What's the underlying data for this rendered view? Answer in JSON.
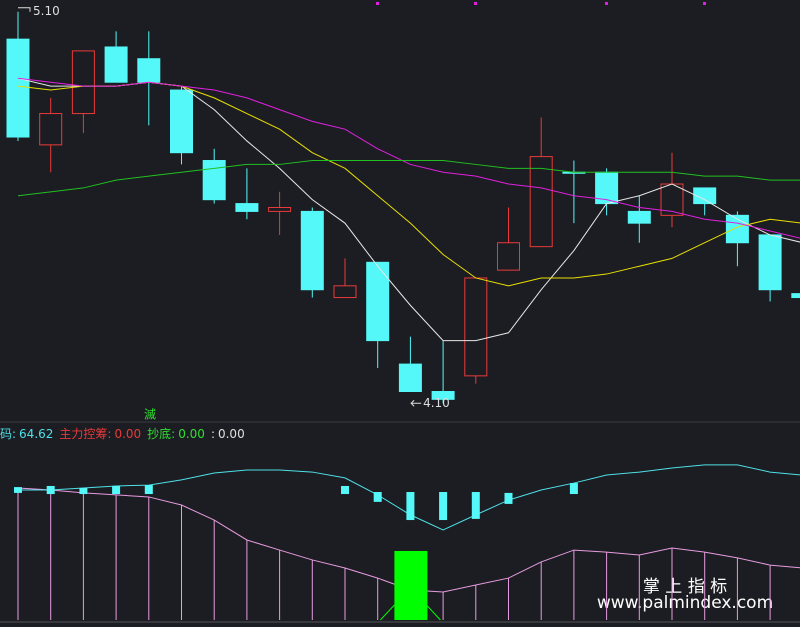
{
  "chart_data": [
    {
      "type": "candlestick",
      "open": [
        5.03,
        4.76,
        4.84,
        5.01,
        4.98,
        4.9,
        4.72,
        4.61,
        4.59,
        4.59,
        4.37,
        4.46,
        4.2,
        4.13,
        4.17,
        4.44,
        4.5,
        4.69,
        4.69,
        4.59,
        4.58,
        4.65,
        4.58,
        4.53,
        4.38
      ],
      "high": [
        5.1,
        4.88,
        5.0,
        5.05,
        5.05,
        4.91,
        4.75,
        4.7,
        4.64,
        4.6,
        4.47,
        4.46,
        4.27,
        4.26,
        4.42,
        4.6,
        4.83,
        4.72,
        4.7,
        4.63,
        4.74,
        4.65,
        4.59,
        4.53,
        4.38
      ],
      "low": [
        4.77,
        4.69,
        4.79,
        4.92,
        4.81,
        4.71,
        4.61,
        4.57,
        4.53,
        4.37,
        4.37,
        4.19,
        4.13,
        4.1,
        4.15,
        4.44,
        4.5,
        4.56,
        4.58,
        4.51,
        4.55,
        4.58,
        4.45,
        4.36,
        4.37
      ],
      "close": [
        4.78,
        4.84,
        5.0,
        4.92,
        4.92,
        4.74,
        4.62,
        4.59,
        4.6,
        4.39,
        4.4,
        4.26,
        4.13,
        4.11,
        4.42,
        4.51,
        4.73,
        4.69,
        4.61,
        4.56,
        4.66,
        4.61,
        4.51,
        4.39,
        4.37
      ],
      "up_color": "#e83a3a",
      "down_color": "#54f8f8",
      "ylim": [
        4.07,
        5.13
      ],
      "max_label": "5.10",
      "min_label": "4.10",
      "lines": [
        {
          "color": "#e8e8e8",
          "values": [
            4.93,
            4.91,
            4.91,
            4.91,
            4.92,
            4.91,
            4.85,
            4.77,
            4.7,
            4.62,
            4.56,
            4.45,
            4.35,
            4.26,
            4.26,
            4.28,
            4.39,
            4.49,
            4.61,
            4.63,
            4.66,
            4.62,
            4.57,
            4.53,
            4.51
          ]
        },
        {
          "color": "#e8e000",
          "values": [
            4.91,
            4.9,
            4.91,
            4.91,
            4.92,
            4.91,
            4.88,
            4.84,
            4.8,
            4.74,
            4.7,
            4.63,
            4.56,
            4.48,
            4.42,
            4.4,
            4.42,
            4.42,
            4.43,
            4.45,
            4.47,
            4.51,
            4.55,
            4.57,
            4.56
          ]
        },
        {
          "color": "#e020e0",
          "values": [
            4.93,
            4.92,
            4.91,
            4.91,
            4.92,
            4.91,
            4.9,
            4.88,
            4.85,
            4.82,
            4.8,
            4.75,
            4.71,
            4.69,
            4.68,
            4.66,
            4.65,
            4.63,
            4.62,
            4.6,
            4.59,
            4.57,
            4.56,
            4.54,
            4.52
          ]
        },
        {
          "color": "#20c020",
          "values": [
            4.63,
            4.64,
            4.65,
            4.67,
            4.68,
            4.69,
            4.7,
            4.71,
            4.71,
            4.72,
            4.72,
            4.72,
            4.72,
            4.72,
            4.71,
            4.7,
            4.7,
            4.69,
            4.69,
            4.69,
            4.69,
            4.68,
            4.68,
            4.67,
            4.67
          ]
        }
      ]
    },
    {
      "type": "indicator",
      "ylim": [
        0,
        87
      ],
      "signal_label": "滅",
      "line": {
        "color": "#4ee0e8",
        "values": [
          58.0,
          58.0,
          58.9,
          59.8,
          60.2,
          62.5,
          65.6,
          66.9,
          66.9,
          66.0,
          63.4,
          55.8,
          46.9,
          40.2,
          46.9,
          53.5,
          58.0,
          61.1,
          64.7,
          66.0,
          67.8,
          69.2,
          69.2,
          66.0,
          64.62
        ]
      },
      "sticks": {
        "color": "#e79be0",
        "values": [
          58.9,
          58.0,
          56.7,
          55.8,
          54.9,
          51.3,
          44.6,
          35.7,
          31.2,
          26.8,
          23.2,
          18.7,
          13.4,
          12.5,
          15.6,
          18.7,
          25.9,
          31.2,
          30.3,
          29.0,
          32.1,
          30.3,
          27.7,
          24.5,
          23.2
        ]
      },
      "bars": {
        "color": "#54f8f8",
        "top": [
          59.3,
          59.8,
          58.9,
          59.8,
          60.2,
          null,
          null,
          null,
          null,
          null,
          59.8,
          57.1,
          57.1,
          57.1,
          57.1,
          56.7,
          null,
          61.1,
          null,
          null,
          null,
          null,
          null,
          null,
          null
        ],
        "bottom": [
          56.7,
          56.2,
          56.2,
          56.2,
          56.2,
          null,
          null,
          null,
          null,
          null,
          56.2,
          52.7,
          44.6,
          44.6,
          45.1,
          51.8,
          null,
          56.2,
          null,
          null,
          null,
          null,
          null,
          null,
          null
        ]
      },
      "signal": {
        "color": "#00ff00",
        "values": [
          null,
          null,
          null,
          null,
          null,
          null,
          null,
          null,
          null,
          null,
          null,
          null,
          30.8,
          null,
          null,
          null,
          null,
          null,
          null,
          null,
          null,
          null,
          null,
          null,
          null
        ]
      },
      "legend": [
        {
          "name": "码:",
          "value": 64.62,
          "color": "#4ee0e8"
        },
        {
          "name": "主力控筹:",
          "value": 0,
          "value_label": "0.00",
          "color": "#e83a3a"
        },
        {
          "name": "抄底:",
          "value": 0,
          "value_label": "0.00",
          "color": "#2ee02e"
        },
        {
          "name": ":",
          "value": 0,
          "value_label": "0.00",
          "color": "#e0e0e0"
        }
      ]
    }
  ],
  "watermark": {
    "title": "掌 上 指 标",
    "url": "www.palmindex.com"
  }
}
